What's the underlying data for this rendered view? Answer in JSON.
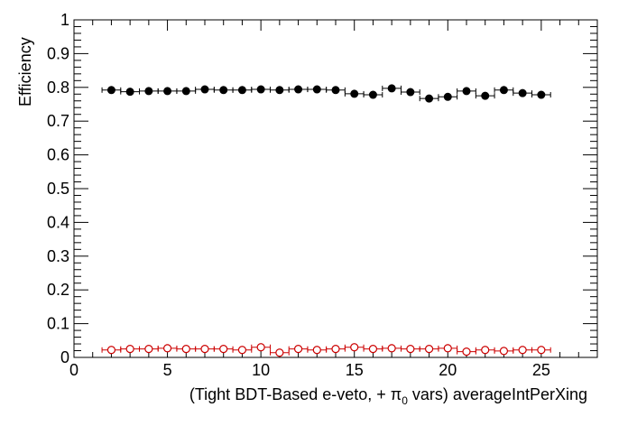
{
  "chart_data": {
    "type": "scatter",
    "ylabel": "Efficiency",
    "xlabel_parts": {
      "pre": "(Tight BDT-Based e-veto, +  ",
      "pi": "π",
      "sub": "0",
      "post": " vars) averageIntPerXing"
    },
    "xlim": [
      0,
      28
    ],
    "ylim": [
      0,
      1
    ],
    "x_ticks": [
      0,
      5,
      10,
      15,
      20,
      25
    ],
    "y_ticks": [
      0,
      0.1,
      0.2,
      0.3,
      0.4,
      0.5,
      0.6,
      0.7,
      0.8,
      0.9,
      1
    ],
    "x_tick_labels": [
      "0",
      "5",
      "10",
      "15",
      "20",
      "25"
    ],
    "y_tick_labels": [
      "0",
      "0.1",
      "0.2",
      "0.3",
      "0.4",
      "0.5",
      "0.6",
      "0.7",
      "0.8",
      "0.9",
      "1"
    ],
    "grid": false,
    "series": [
      {
        "marker": "filled-circle",
        "color": "#000000",
        "x": [
          2,
          3,
          4,
          5,
          6,
          7,
          8,
          9,
          10,
          11,
          12,
          13,
          14,
          15,
          16,
          17,
          18,
          19,
          20,
          21,
          22,
          23,
          24,
          25
        ],
        "y": [
          0.792,
          0.787,
          0.789,
          0.789,
          0.789,
          0.794,
          0.792,
          0.792,
          0.794,
          0.792,
          0.794,
          0.794,
          0.792,
          0.781,
          0.778,
          0.797,
          0.786,
          0.767,
          0.772,
          0.789,
          0.775,
          0.792,
          0.783,
          0.778
        ],
        "yerr": [
          0.008,
          0.006,
          0.006,
          0.006,
          0.006,
          0.006,
          0.006,
          0.006,
          0.006,
          0.006,
          0.006,
          0.006,
          0.006,
          0.006,
          0.006,
          0.006,
          0.006,
          0.007,
          0.007,
          0.007,
          0.007,
          0.007,
          0.007,
          0.007
        ],
        "xerr": 0.5
      },
      {
        "marker": "open-circle",
        "color": "#cc0000",
        "x": [
          2,
          3,
          4,
          5,
          6,
          7,
          8,
          9,
          10,
          11,
          12,
          13,
          14,
          15,
          16,
          17,
          18,
          19,
          20,
          21,
          22,
          23,
          24,
          25
        ],
        "y": [
          0.022,
          0.025,
          0.025,
          0.027,
          0.025,
          0.025,
          0.025,
          0.022,
          0.03,
          0.014,
          0.025,
          0.022,
          0.025,
          0.03,
          0.025,
          0.027,
          0.025,
          0.025,
          0.027,
          0.017,
          0.022,
          0.019,
          0.022,
          0.022
        ],
        "yerr": [
          0.004,
          0.003,
          0.003,
          0.003,
          0.003,
          0.003,
          0.003,
          0.003,
          0.003,
          0.003,
          0.003,
          0.003,
          0.003,
          0.003,
          0.003,
          0.003,
          0.003,
          0.003,
          0.003,
          0.003,
          0.003,
          0.003,
          0.003,
          0.003
        ],
        "xerr": 0.5
      }
    ]
  }
}
